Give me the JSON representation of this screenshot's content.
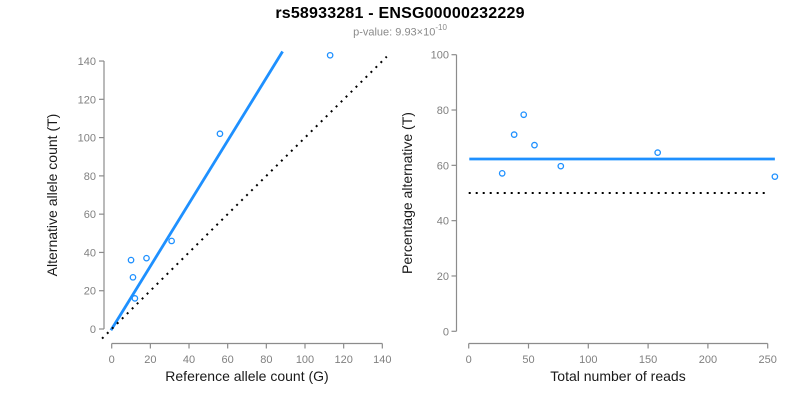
{
  "header": {
    "title": "rs58933281 - ENSG00000232229",
    "pvalue_text": "p-value: 9.93×10",
    "pvalue_exponent": "-10"
  },
  "colors": {
    "accent_blue": "#1E90FF",
    "axis_gray": "#8c8c8c",
    "tick_label_gray": "#808080",
    "label_black": "#1a1a1a",
    "reference_black": "#000000",
    "subtitle_gray": "#8a8a8a"
  },
  "chart_data": [
    {
      "type": "scatter",
      "name": "allele-counts-plot",
      "xlabel": "Reference allele count (G)",
      "ylabel": "Alternative allele count (T)",
      "xlim": [
        0,
        143.5
      ],
      "ylim": [
        0,
        145.5
      ],
      "xticks": [
        0,
        20,
        40,
        60,
        80,
        100,
        120,
        140
      ],
      "yticks": [
        0,
        20,
        40,
        60,
        80,
        100,
        120,
        140
      ],
      "grid": false,
      "legend": "none",
      "marker": "open-circle",
      "point_color": "#1E90FF",
      "points": [
        [
          10,
          36
        ],
        [
          11,
          27
        ],
        [
          12,
          16
        ],
        [
          18,
          37
        ],
        [
          31,
          46
        ],
        [
          56,
          102
        ],
        [
          113,
          143
        ]
      ],
      "lines": [
        {
          "role": "fit-line",
          "slope": 1.64,
          "intercept": 0,
          "x_range": [
            -0.4,
            88.4
          ],
          "color": "#1E90FF",
          "style": "solid",
          "width": 2.8
        },
        {
          "role": "identity-line",
          "slope": 1,
          "intercept": 0,
          "x_range": [
            -5,
            142.3
          ],
          "color": "#000000",
          "style": "dotted",
          "width": 2
        }
      ]
    },
    {
      "type": "scatter",
      "name": "percentage-plot",
      "xlabel": "Total number of reads",
      "ylabel": "Percentage alternative (T)",
      "xlim": [
        0,
        256.5
      ],
      "ylim": [
        0,
        100
      ],
      "xticks": [
        0,
        50,
        100,
        150,
        200,
        250
      ],
      "yticks": [
        0,
        20,
        40,
        60,
        80,
        100
      ],
      "grid": false,
      "legend": "none",
      "marker": "open-circle",
      "point_color": "#1E90FF",
      "points": [
        [
          28,
          57.1
        ],
        [
          38,
          71.1
        ],
        [
          46,
          78.3
        ],
        [
          55,
          67.3
        ],
        [
          77,
          59.7
        ],
        [
          158,
          64.6
        ],
        [
          256,
          55.9
        ]
      ],
      "lines": [
        {
          "role": "mean-line",
          "slope": 0,
          "intercept": 62.3,
          "x_range": [
            0.5,
            256
          ],
          "color": "#1E90FF",
          "style": "solid",
          "width": 2.8
        },
        {
          "role": "null-line",
          "slope": 0,
          "intercept": 50,
          "x_range": [
            0,
            250.5
          ],
          "color": "#000000",
          "style": "dotted",
          "width": 2
        }
      ]
    }
  ]
}
